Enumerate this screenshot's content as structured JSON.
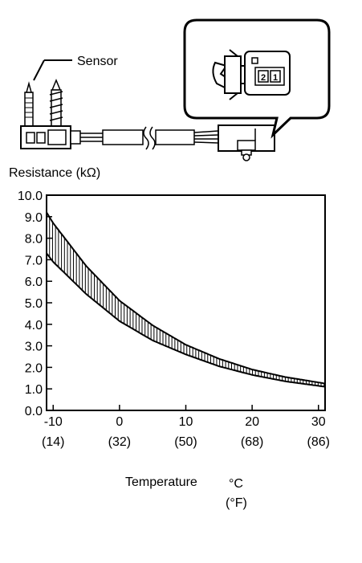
{
  "illustration": {
    "callout_label": "Sensor",
    "connector_pins": [
      "2",
      "1"
    ],
    "icon": "sensor-connector-icon"
  },
  "chart_data": {
    "type": "area",
    "ylabel": "Resistance (kΩ)",
    "xlabel": "Temperature",
    "xlabel_unit_c": "°C",
    "xlabel_unit_f": "(°F)",
    "xlim": [
      -11,
      31
    ],
    "ylim": [
      0,
      10
    ],
    "y_ticks": [
      "0.0",
      "1.0",
      "2.0",
      "3.0",
      "4.0",
      "5.0",
      "6.0",
      "7.0",
      "8.0",
      "9.0",
      "10.0"
    ],
    "x_ticks": [
      {
        "c": "-10",
        "f": "(14)"
      },
      {
        "c": "0",
        "f": "(32)"
      },
      {
        "c": "10",
        "f": "(50)"
      },
      {
        "c": "20",
        "f": "(68)"
      },
      {
        "c": "30",
        "f": "(86)"
      }
    ],
    "series": [
      {
        "x": [
          -11,
          -10,
          -5,
          0,
          5,
          10,
          15,
          20,
          25,
          31
        ],
        "values": [
          9.2,
          8.7,
          6.7,
          5.1,
          3.95,
          3.05,
          2.4,
          1.9,
          1.55,
          1.25
        ]
      },
      {
        "x": [
          -11,
          -10,
          -5,
          0,
          5,
          10,
          15,
          20,
          25,
          31
        ],
        "values": [
          7.3,
          6.9,
          5.4,
          4.15,
          3.25,
          2.6,
          2.05,
          1.65,
          1.35,
          1.1
        ]
      }
    ],
    "fill": "hatched-vertical",
    "grid": false,
    "colors": {
      "line": "#000000",
      "background": "#ffffff"
    }
  }
}
